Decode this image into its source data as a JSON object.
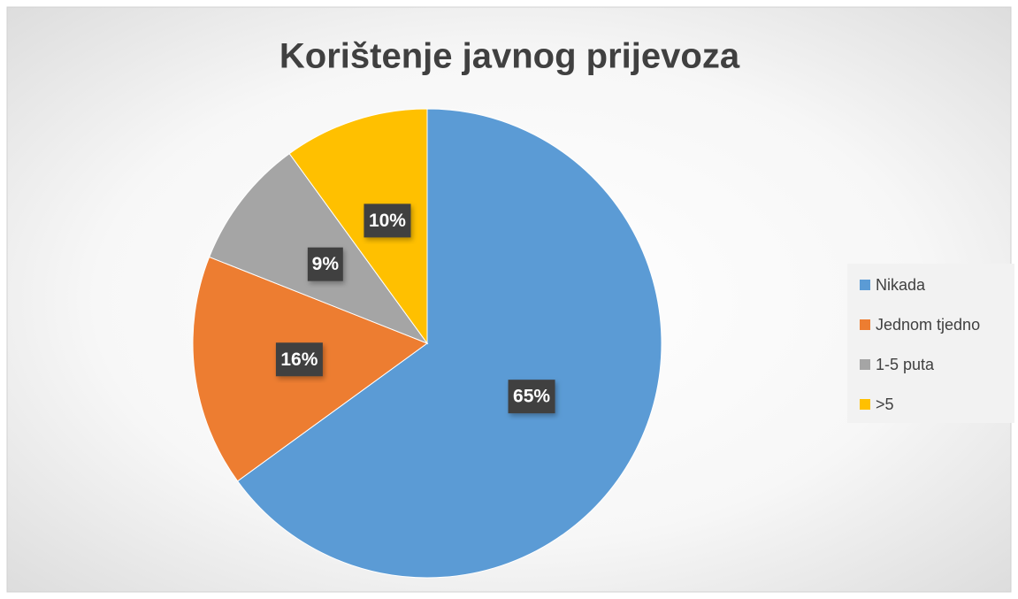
{
  "chart_data": {
    "type": "pie",
    "title": "Korištenje javnog prijevoza",
    "categories": [
      "Nikada",
      "Jednom tjedno",
      "1-5 puta",
      ">5"
    ],
    "values": [
      65,
      16,
      9,
      10
    ],
    "value_labels": [
      "65%",
      "16%",
      "9%",
      "10%"
    ],
    "colors": [
      "#5b9bd5",
      "#ed7d31",
      "#a5a5a5",
      "#ffc000"
    ],
    "legend": "right"
  }
}
